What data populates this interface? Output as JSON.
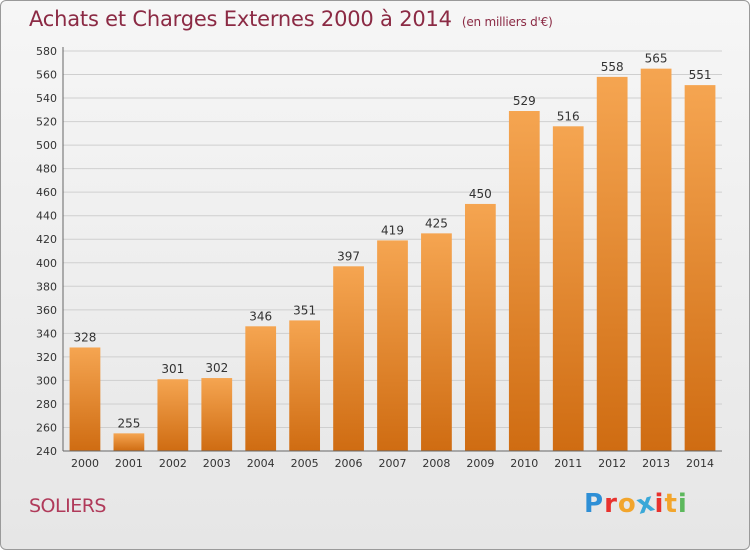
{
  "header": {
    "title": "Achats et Charges Externes 2000 à 2014",
    "subtitle": "(en milliers d'€)"
  },
  "footer": {
    "commune": "SOLIERS",
    "logo_letters": [
      "P",
      "r",
      "o",
      "x",
      "i",
      "t",
      "i"
    ],
    "logo_colors": [
      "#2e8fd6",
      "#e8322e",
      "#f2a52c",
      "#3aa8d8",
      "#e8322e",
      "#f2a52c",
      "#5cb85c"
    ]
  },
  "colors": {
    "bar_top": "#f5a551",
    "bar_bottom": "#cf6c12",
    "grid": "#cfcfcf",
    "title": "#8b2a44"
  },
  "chart_data": {
    "type": "bar",
    "title": "Achats et Charges Externes 2000 à 2014",
    "subtitle": "(en milliers d'€)",
    "categories": [
      "2000",
      "2001",
      "2002",
      "2003",
      "2004",
      "2005",
      "2006",
      "2007",
      "2008",
      "2009",
      "2010",
      "2011",
      "2012",
      "2013",
      "2014"
    ],
    "values": [
      328,
      255,
      301,
      302,
      346,
      351,
      397,
      419,
      425,
      450,
      529,
      516,
      558,
      565,
      551
    ],
    "ylim": [
      240,
      580
    ],
    "yticks": [
      240,
      260,
      280,
      300,
      320,
      340,
      360,
      380,
      400,
      420,
      440,
      460,
      480,
      500,
      520,
      540,
      560,
      580
    ],
    "grid": true,
    "xlabel": "",
    "ylabel": ""
  }
}
